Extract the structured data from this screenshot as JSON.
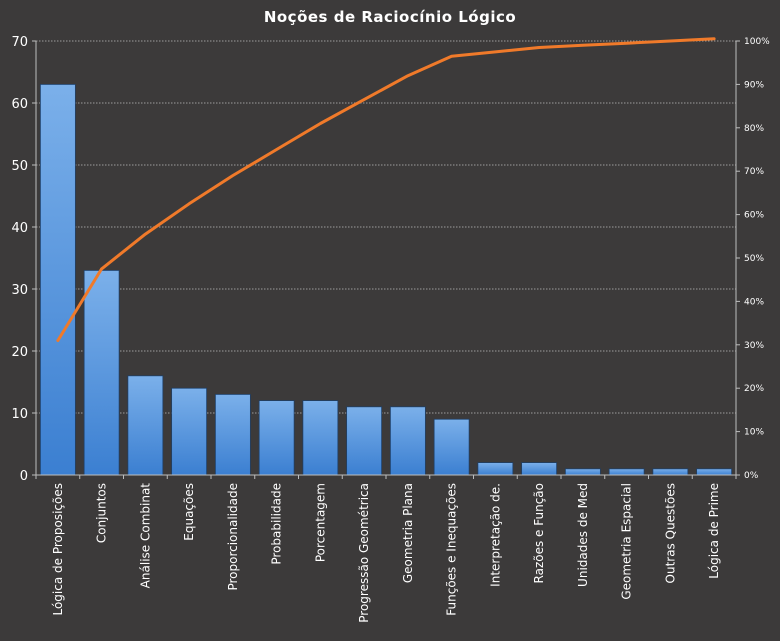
{
  "chart_data": {
    "type": "bar",
    "title": "Noções de Raciocínio Lógico",
    "categories": [
      "Lógica de Proposições",
      "Conjuntos",
      "Análise Combinat",
      "Equações",
      "Proporcionalidade",
      "Probabilidade",
      "Porcentagem",
      "Progressão Geométrica",
      "Geometria Plana",
      "Funções e Inequações",
      "Interpretação de.",
      "Razões e Função",
      "Unidades de Med",
      "Geometria Espacial",
      "Outras Questões",
      "Lógica de Prime"
    ],
    "series": [
      {
        "type": "bar",
        "values": [
          63,
          33,
          16,
          14,
          13,
          12,
          12,
          11,
          11,
          9,
          2,
          2,
          1,
          1,
          1,
          1
        ]
      },
      {
        "type": "line",
        "axis": "right",
        "values": [
          31,
          47.5,
          55.5,
          62.5,
          69,
          75,
          81,
          86.5,
          92,
          96.5,
          97.5,
          98.5,
          99,
          99.5,
          100,
          100.5
        ]
      }
    ],
    "ylim": [
      0,
      70
    ],
    "yticks": [
      "0",
      "10",
      "20",
      "30",
      "40",
      "50",
      "60",
      "70"
    ],
    "y2lim": [
      0,
      100
    ],
    "y2ticks": [
      "0%",
      "10%",
      "20%",
      "30%",
      "40%",
      "50%",
      "60%",
      "70%",
      "80%",
      "90%",
      "100%"
    ],
    "grid": true,
    "colors": {
      "background": "#3c3a3a",
      "plot_background": "#3c3a3a",
      "bar_top": "#7bb0ea",
      "bar_bottom": "#3b7fd1",
      "bar_stroke": "#1f3f66",
      "line": "#f07a2a",
      "grid": "#bdbdbd",
      "text": "#ffffff"
    }
  }
}
